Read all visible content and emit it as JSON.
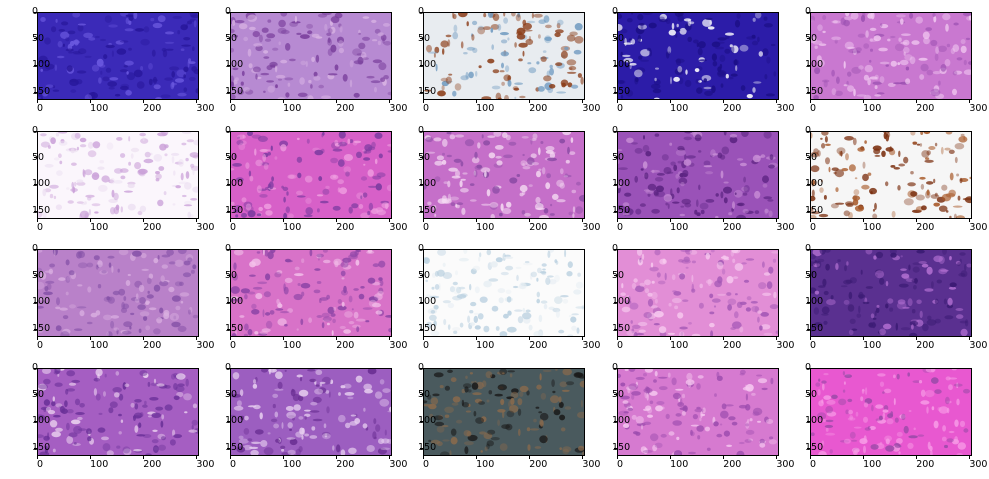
{
  "figure": {
    "rows": 4,
    "cols": 5,
    "panels": [
      {
        "id": "r1c1",
        "tissue": "dense-blue-nuclei",
        "colors": [
          "#3b2ab8",
          "#27169a",
          "#6c5ae0"
        ]
      },
      {
        "id": "r1c2",
        "tissue": "purple-cellular",
        "colors": [
          "#b78ad2",
          "#7a3f9c",
          "#d9b4e4"
        ]
      },
      {
        "id": "r1c3",
        "tissue": "brown-stain-on-blue",
        "colors": [
          "#e8ecf0",
          "#8a3b16",
          "#6f9ac0"
        ]
      },
      {
        "id": "r1c4",
        "tissue": "dense-blue-with-white-cracks",
        "colors": [
          "#2c1ca8",
          "#1c0f86",
          "#ffffff"
        ]
      },
      {
        "id": "r1c5",
        "tissue": "pink-fibrous",
        "colors": [
          "#c978d0",
          "#f0c6f0",
          "#9a4fb0"
        ]
      },
      {
        "id": "r2c1",
        "tissue": "fat-white-cells",
        "colors": [
          "#fbf6fc",
          "#caa0d8",
          "#ede1f2"
        ]
      },
      {
        "id": "r2c2",
        "tissue": "pink-stroma",
        "colors": [
          "#d760c8",
          "#7a3aa0",
          "#ef9ee0"
        ]
      },
      {
        "id": "r2c3",
        "tissue": "pink-white-mixed",
        "colors": [
          "#c56fc9",
          "#f4d9f2",
          "#8a4aa4"
        ]
      },
      {
        "id": "r2c4",
        "tissue": "purple-with-black-line",
        "colors": [
          "#9a52b8",
          "#5a2280",
          "#c88ed6"
        ]
      },
      {
        "id": "r2c5",
        "tissue": "brown-glands-on-white",
        "colors": [
          "#f6f6f6",
          "#7a2e0e",
          "#a85a2a"
        ]
      },
      {
        "id": "r3c1",
        "tissue": "pink-purple-stroma",
        "colors": [
          "#b981c9",
          "#8652a8",
          "#d9aee0"
        ]
      },
      {
        "id": "r3c2",
        "tissue": "pink-glandular",
        "colors": [
          "#d872c8",
          "#8c44a6",
          "#f3c0ea"
        ]
      },
      {
        "id": "r3c3",
        "tissue": "mostly-white-blue-edge",
        "colors": [
          "#fbfbfb",
          "#b8cfdf",
          "#e7eef3"
        ]
      },
      {
        "id": "r3c4",
        "tissue": "pink-fibrous-with-gland",
        "colors": [
          "#e28ed6",
          "#a458b6",
          "#f7c9ef"
        ]
      },
      {
        "id": "r3c5",
        "tissue": "dense-purple-lymphoid",
        "colors": [
          "#5a3090",
          "#3a1a72",
          "#b06ed0"
        ]
      },
      {
        "id": "r4c1",
        "tissue": "purple-with-white-streak",
        "colors": [
          "#a55ec2",
          "#6a3098",
          "#efd8f2"
        ]
      },
      {
        "id": "r4c2",
        "tissue": "purple-vacuolated",
        "colors": [
          "#9c5ec0",
          "#e6cdef",
          "#6a2e92"
        ]
      },
      {
        "id": "r4c3",
        "tissue": "gray-brown-with-dark-band",
        "colors": [
          "#4a5a5e",
          "#8a6a4c",
          "#1a1a1a"
        ]
      },
      {
        "id": "r4c4",
        "tissue": "pink-striated",
        "colors": [
          "#d67ad0",
          "#9c4cae",
          "#f6c8f0"
        ]
      },
      {
        "id": "r4c5",
        "tissue": "bright-pink-colloid",
        "colors": [
          "#e858d0",
          "#f79ae6",
          "#9a4aa8"
        ]
      }
    ]
  },
  "axes": {
    "x_ticks": [
      "0",
      "100",
      "200",
      "300"
    ],
    "y_ticks": [
      "0",
      "50",
      "100",
      "150"
    ],
    "x_values": [
      0,
      100,
      200,
      300
    ],
    "y_values": [
      0,
      50,
      100,
      150
    ],
    "x_range": [
      0,
      305
    ],
    "y_range": [
      0,
      165
    ]
  }
}
